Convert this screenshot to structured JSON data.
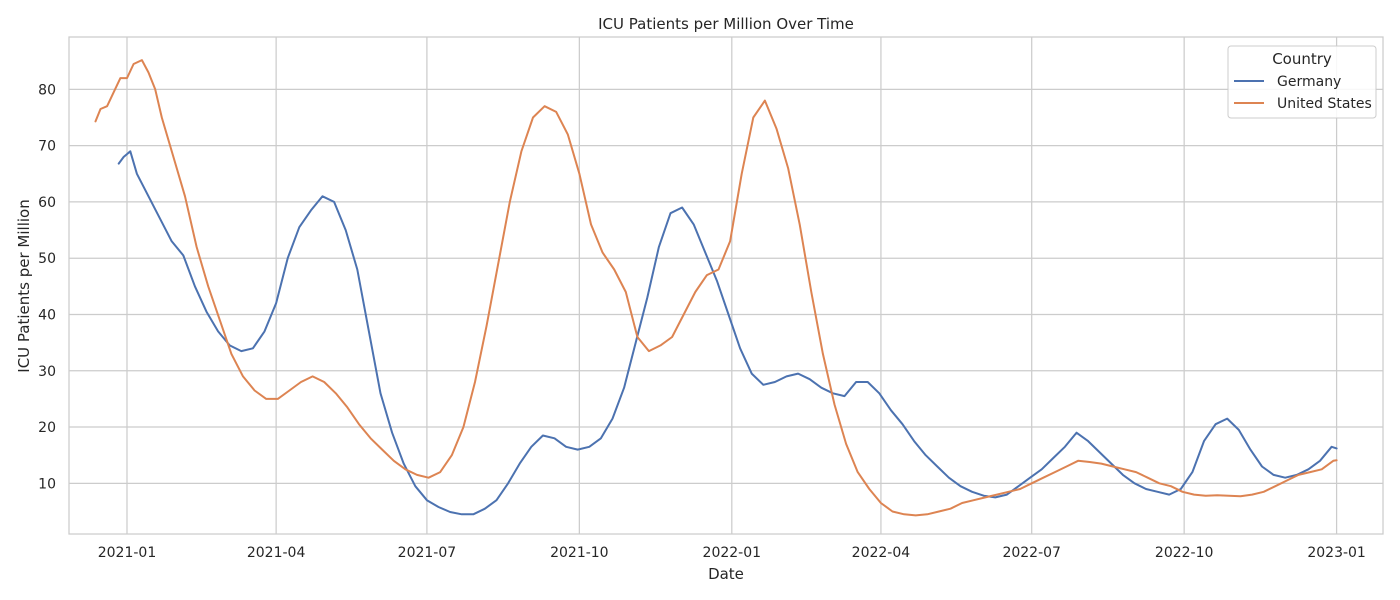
{
  "chart_data": {
    "type": "line",
    "title": "ICU Patients per Million Over Time",
    "xlabel": "Date",
    "ylabel": "ICU Patients per Million",
    "x_ticks": [
      "2021-01-01",
      "2021-04-01",
      "2021-07-01",
      "2021-10-01",
      "2022-01-01",
      "2022-04-01",
      "2022-07-01",
      "2022-10-01",
      "2023-01-01"
    ],
    "x_tick_labels": [
      "2021-01",
      "2021-04",
      "2021-07",
      "2021-10",
      "2022-01",
      "2022-04",
      "2022-07",
      "2022-10",
      "2023-01"
    ],
    "y_ticks": [
      10,
      20,
      30,
      40,
      50,
      60,
      70,
      80
    ],
    "xlim": [
      "2020-11-27",
      "2023-01-29"
    ],
    "ylim": [
      1.0,
      89.3
    ],
    "grid": true,
    "legend": {
      "title": "Country",
      "position": "top-right"
    },
    "series": [
      {
        "name": "Germany",
        "color": "#4c72b0",
        "points": [
          [
            "2020-12-27",
            66.8
          ],
          [
            "2020-12-30",
            68.0
          ],
          [
            "2021-01-03",
            69.0
          ],
          [
            "2021-01-07",
            65.0
          ],
          [
            "2021-01-14",
            61.0
          ],
          [
            "2021-01-21",
            57.0
          ],
          [
            "2021-01-28",
            53.0
          ],
          [
            "2021-02-04",
            50.5
          ],
          [
            "2021-02-11",
            45.0
          ],
          [
            "2021-02-18",
            40.5
          ],
          [
            "2021-02-25",
            37.0
          ],
          [
            "2021-03-04",
            34.5
          ],
          [
            "2021-03-11",
            33.5
          ],
          [
            "2021-03-18",
            34.0
          ],
          [
            "2021-03-25",
            37.0
          ],
          [
            "2021-04-01",
            42.0
          ],
          [
            "2021-04-08",
            50.0
          ],
          [
            "2021-04-15",
            55.5
          ],
          [
            "2021-04-22",
            58.5
          ],
          [
            "2021-04-29",
            61.0
          ],
          [
            "2021-05-06",
            60.0
          ],
          [
            "2021-05-13",
            55.0
          ],
          [
            "2021-05-20",
            48.0
          ],
          [
            "2021-05-27",
            37.0
          ],
          [
            "2021-06-03",
            26.0
          ],
          [
            "2021-06-10",
            19.0
          ],
          [
            "2021-06-17",
            13.5
          ],
          [
            "2021-06-24",
            9.5
          ],
          [
            "2021-07-01",
            7.0
          ],
          [
            "2021-07-08",
            5.8
          ],
          [
            "2021-07-15",
            4.9
          ],
          [
            "2021-07-22",
            4.5
          ],
          [
            "2021-07-29",
            4.5
          ],
          [
            "2021-08-05",
            5.5
          ],
          [
            "2021-08-12",
            7.0
          ],
          [
            "2021-08-19",
            10.0
          ],
          [
            "2021-08-26",
            13.5
          ],
          [
            "2021-09-02",
            16.5
          ],
          [
            "2021-09-09",
            18.5
          ],
          [
            "2021-09-16",
            18.0
          ],
          [
            "2021-09-23",
            16.5
          ],
          [
            "2021-09-30",
            16.0
          ],
          [
            "2021-10-07",
            16.5
          ],
          [
            "2021-10-14",
            18.0
          ],
          [
            "2021-10-21",
            21.5
          ],
          [
            "2021-10-28",
            27.0
          ],
          [
            "2021-11-04",
            35.0
          ],
          [
            "2021-11-11",
            43.0
          ],
          [
            "2021-11-18",
            52.0
          ],
          [
            "2021-11-25",
            58.0
          ],
          [
            "2021-12-02",
            59.0
          ],
          [
            "2021-12-09",
            56.0
          ],
          [
            "2021-12-16",
            51.0
          ],
          [
            "2021-12-23",
            46.0
          ],
          [
            "2021-12-30",
            40.0
          ],
          [
            "2022-01-06",
            34.0
          ],
          [
            "2022-01-13",
            29.5
          ],
          [
            "2022-01-20",
            27.5
          ],
          [
            "2022-01-27",
            28.0
          ],
          [
            "2022-02-03",
            29.0
          ],
          [
            "2022-02-10",
            29.5
          ],
          [
            "2022-02-17",
            28.5
          ],
          [
            "2022-02-24",
            27.0
          ],
          [
            "2022-03-03",
            26.0
          ],
          [
            "2022-03-10",
            25.5
          ],
          [
            "2022-03-17",
            28.0
          ],
          [
            "2022-03-24",
            28.0
          ],
          [
            "2022-03-31",
            26.0
          ],
          [
            "2022-04-07",
            23.0
          ],
          [
            "2022-04-14",
            20.5
          ],
          [
            "2022-04-21",
            17.5
          ],
          [
            "2022-04-28",
            15.0
          ],
          [
            "2022-05-05",
            13.0
          ],
          [
            "2022-05-12",
            11.0
          ],
          [
            "2022-05-19",
            9.5
          ],
          [
            "2022-05-26",
            8.5
          ],
          [
            "2022-06-02",
            7.8
          ],
          [
            "2022-06-09",
            7.5
          ],
          [
            "2022-06-16",
            8.0
          ],
          [
            "2022-06-23",
            9.5
          ],
          [
            "2022-06-30",
            11.0
          ],
          [
            "2022-07-07",
            12.5
          ],
          [
            "2022-07-14",
            14.5
          ],
          [
            "2022-07-21",
            16.5
          ],
          [
            "2022-07-28",
            19.0
          ],
          [
            "2022-08-04",
            17.5
          ],
          [
            "2022-08-11",
            15.5
          ],
          [
            "2022-08-18",
            13.5
          ],
          [
            "2022-08-25",
            11.5
          ],
          [
            "2022-09-01",
            10.0
          ],
          [
            "2022-09-08",
            9.0
          ],
          [
            "2022-09-15",
            8.5
          ],
          [
            "2022-09-22",
            8.0
          ],
          [
            "2022-09-29",
            9.0
          ],
          [
            "2022-10-06",
            12.0
          ],
          [
            "2022-10-13",
            17.5
          ],
          [
            "2022-10-20",
            20.5
          ],
          [
            "2022-10-27",
            21.5
          ],
          [
            "2022-11-03",
            19.5
          ],
          [
            "2022-11-10",
            16.0
          ],
          [
            "2022-11-17",
            13.0
          ],
          [
            "2022-11-24",
            11.5
          ],
          [
            "2022-12-01",
            11.0
          ],
          [
            "2022-12-08",
            11.5
          ],
          [
            "2022-12-15",
            12.5
          ],
          [
            "2022-12-22",
            14.0
          ],
          [
            "2022-12-29",
            16.5
          ],
          [
            "2023-01-01",
            16.2
          ]
        ]
      },
      {
        "name": "United States",
        "color": "#dd8452",
        "points": [
          [
            "2020-12-13",
            74.3
          ],
          [
            "2020-12-16",
            76.5
          ],
          [
            "2020-12-20",
            77.0
          ],
          [
            "2020-12-24",
            79.5
          ],
          [
            "2020-12-28",
            82.0
          ],
          [
            "2021-01-01",
            82.0
          ],
          [
            "2021-01-05",
            84.5
          ],
          [
            "2021-01-10",
            85.2
          ],
          [
            "2021-01-14",
            83.0
          ],
          [
            "2021-01-18",
            80.0
          ],
          [
            "2021-01-22",
            75.0
          ],
          [
            "2021-01-29",
            68.0
          ],
          [
            "2021-02-05",
            61.0
          ],
          [
            "2021-02-12",
            52.0
          ],
          [
            "2021-02-19",
            45.0
          ],
          [
            "2021-02-26",
            39.0
          ],
          [
            "2021-03-05",
            33.0
          ],
          [
            "2021-03-12",
            29.0
          ],
          [
            "2021-03-19",
            26.5
          ],
          [
            "2021-03-26",
            25.0
          ],
          [
            "2021-04-02",
            25.0
          ],
          [
            "2021-04-09",
            26.5
          ],
          [
            "2021-04-16",
            28.0
          ],
          [
            "2021-04-23",
            29.0
          ],
          [
            "2021-04-30",
            28.0
          ],
          [
            "2021-05-07",
            26.0
          ],
          [
            "2021-05-14",
            23.5
          ],
          [
            "2021-05-21",
            20.5
          ],
          [
            "2021-05-28",
            18.0
          ],
          [
            "2021-06-04",
            16.0
          ],
          [
            "2021-06-11",
            14.0
          ],
          [
            "2021-06-18",
            12.5
          ],
          [
            "2021-06-25",
            11.5
          ],
          [
            "2021-07-02",
            11.0
          ],
          [
            "2021-07-09",
            12.0
          ],
          [
            "2021-07-16",
            15.0
          ],
          [
            "2021-07-23",
            20.0
          ],
          [
            "2021-07-30",
            28.0
          ],
          [
            "2021-08-06",
            38.0
          ],
          [
            "2021-08-13",
            49.0
          ],
          [
            "2021-08-20",
            60.0
          ],
          [
            "2021-08-27",
            69.0
          ],
          [
            "2021-09-03",
            75.0
          ],
          [
            "2021-09-10",
            77.0
          ],
          [
            "2021-09-17",
            76.0
          ],
          [
            "2021-09-24",
            72.0
          ],
          [
            "2021-10-01",
            65.0
          ],
          [
            "2021-10-08",
            56.0
          ],
          [
            "2021-10-15",
            51.0
          ],
          [
            "2021-10-22",
            48.0
          ],
          [
            "2021-10-29",
            44.0
          ],
          [
            "2021-11-05",
            36.0
          ],
          [
            "2021-11-12",
            33.5
          ],
          [
            "2021-11-19",
            34.5
          ],
          [
            "2021-11-26",
            36.0
          ],
          [
            "2021-12-03",
            40.0
          ],
          [
            "2021-12-10",
            44.0
          ],
          [
            "2021-12-17",
            47.0
          ],
          [
            "2021-12-24",
            48.0
          ],
          [
            "2021-12-31",
            53.0
          ],
          [
            "2022-01-07",
            65.0
          ],
          [
            "2022-01-14",
            75.0
          ],
          [
            "2022-01-21",
            78.0
          ],
          [
            "2022-01-28",
            73.0
          ],
          [
            "2022-02-04",
            66.0
          ],
          [
            "2022-02-11",
            56.0
          ],
          [
            "2022-02-18",
            44.0
          ],
          [
            "2022-02-25",
            33.0
          ],
          [
            "2022-03-04",
            24.0
          ],
          [
            "2022-03-11",
            17.0
          ],
          [
            "2022-03-18",
            12.0
          ],
          [
            "2022-03-25",
            9.0
          ],
          [
            "2022-04-01",
            6.5
          ],
          [
            "2022-04-08",
            5.0
          ],
          [
            "2022-04-15",
            4.5
          ],
          [
            "2022-04-22",
            4.3
          ],
          [
            "2022-04-29",
            4.5
          ],
          [
            "2022-05-06",
            5.0
          ],
          [
            "2022-05-13",
            5.5
          ],
          [
            "2022-05-20",
            6.5
          ],
          [
            "2022-05-27",
            7.0
          ],
          [
            "2022-06-03",
            7.5
          ],
          [
            "2022-06-10",
            8.0
          ],
          [
            "2022-06-17",
            8.5
          ],
          [
            "2022-06-24",
            9.0
          ],
          [
            "2022-07-01",
            10.0
          ],
          [
            "2022-07-08",
            11.0
          ],
          [
            "2022-07-15",
            12.0
          ],
          [
            "2022-07-22",
            13.0
          ],
          [
            "2022-07-29",
            14.0
          ],
          [
            "2022-08-05",
            13.8
          ],
          [
            "2022-08-12",
            13.5
          ],
          [
            "2022-08-19",
            13.0
          ],
          [
            "2022-08-26",
            12.5
          ],
          [
            "2022-09-02",
            12.0
          ],
          [
            "2022-09-09",
            11.0
          ],
          [
            "2022-09-16",
            10.0
          ],
          [
            "2022-09-23",
            9.5
          ],
          [
            "2022-09-30",
            8.5
          ],
          [
            "2022-10-07",
            8.0
          ],
          [
            "2022-10-14",
            7.8
          ],
          [
            "2022-10-21",
            7.9
          ],
          [
            "2022-10-28",
            7.8
          ],
          [
            "2022-11-04",
            7.7
          ],
          [
            "2022-11-11",
            8.0
          ],
          [
            "2022-11-18",
            8.5
          ],
          [
            "2022-11-25",
            9.5
          ],
          [
            "2022-12-02",
            10.5
          ],
          [
            "2022-12-09",
            11.5
          ],
          [
            "2022-12-16",
            12.0
          ],
          [
            "2022-12-23",
            12.5
          ],
          [
            "2022-12-30",
            14.0
          ],
          [
            "2023-01-01",
            14.1
          ]
        ]
      }
    ]
  }
}
